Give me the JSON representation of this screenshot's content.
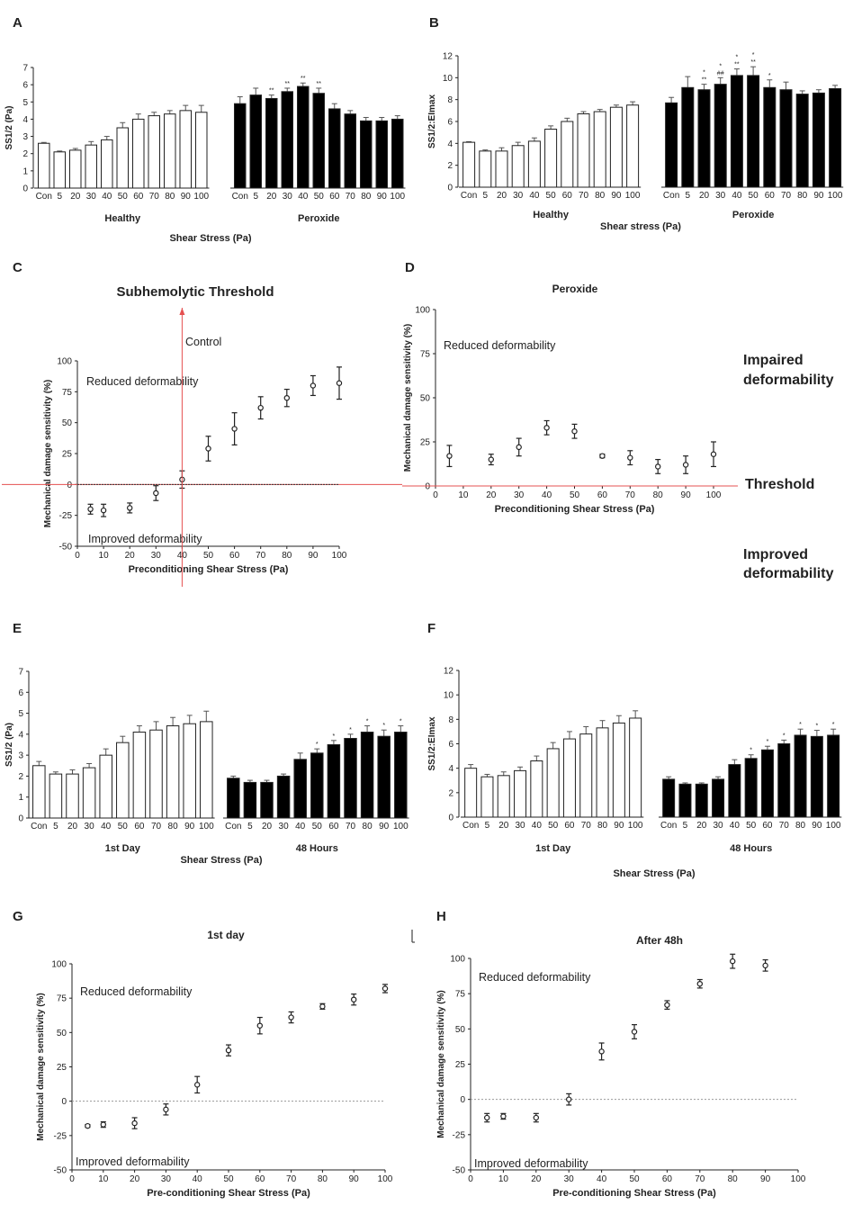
{
  "panel_labels": [
    "A",
    "B",
    "C",
    "D",
    "E",
    "F",
    "G",
    "H"
  ],
  "side_labels": {
    "impaired": [
      "Impaired",
      "deformability"
    ],
    "threshold": "Threshold",
    "improved": [
      "Improved",
      "deformability"
    ]
  },
  "chart_data": [
    {
      "id": "A",
      "type": "bar",
      "title": "",
      "xlabel": "Shear Stress (Pa)",
      "ylabel": "SS1/2 (Pa)",
      "ylim": [
        0,
        7
      ],
      "yticks": [
        0,
        1,
        2,
        3,
        4,
        5,
        6,
        7
      ],
      "groups": [
        {
          "name": "Healthy",
          "fill": "#ffffff",
          "categories": [
            "Con",
            "5",
            "20",
            "30",
            "40",
            "50",
            "60",
            "70",
            "80",
            "90",
            "100"
          ],
          "values": [
            2.6,
            2.1,
            2.2,
            2.5,
            2.8,
            3.5,
            4.0,
            4.2,
            4.3,
            4.5,
            4.4
          ],
          "errors": [
            0.05,
            0.05,
            0.1,
            0.2,
            0.2,
            0.3,
            0.3,
            0.2,
            0.2,
            0.3,
            0.4
          ],
          "annotations": [
            "",
            "",
            "",
            "",
            "",
            "",
            "",
            "",
            "",
            "",
            ""
          ]
        },
        {
          "name": "Peroxide",
          "fill": "#000000",
          "categories": [
            "Con",
            "5",
            "20",
            "30",
            "40",
            "50",
            "60",
            "70",
            "80",
            "90",
            "100"
          ],
          "values": [
            4.9,
            5.4,
            5.2,
            5.6,
            5.9,
            5.5,
            4.6,
            4.3,
            3.9,
            3.9,
            4.0
          ],
          "errors": [
            0.4,
            0.4,
            0.2,
            0.2,
            0.2,
            0.3,
            0.3,
            0.2,
            0.2,
            0.2,
            0.2
          ],
          "annotations": [
            "",
            "",
            "**",
            "**",
            "**",
            "**",
            "",
            "",
            "",
            "",
            ""
          ]
        }
      ]
    },
    {
      "id": "B",
      "type": "bar",
      "title": "",
      "xlabel": "Shear stress (Pa)",
      "ylabel": "SS1/2:EImax",
      "ylim": [
        0,
        12
      ],
      "yticks": [
        0,
        2,
        4,
        6,
        8,
        10,
        12
      ],
      "groups": [
        {
          "name": "Healthy",
          "fill": "#ffffff",
          "categories": [
            "Con",
            "5",
            "20",
            "30",
            "40",
            "50",
            "60",
            "70",
            "80",
            "90",
            "100"
          ],
          "values": [
            4.1,
            3.3,
            3.3,
            3.8,
            4.2,
            5.3,
            6.0,
            6.7,
            6.9,
            7.3,
            7.5
          ],
          "errors": [
            0.05,
            0.1,
            0.3,
            0.3,
            0.3,
            0.3,
            0.3,
            0.2,
            0.2,
            0.2,
            0.3
          ],
          "annotations": [
            "",
            "",
            "",
            "",
            "",
            "",
            "",
            "",
            "",
            "",
            ""
          ]
        },
        {
          "name": "Peroxide",
          "fill": "#000000",
          "categories": [
            "Con",
            "5",
            "20",
            "30",
            "40",
            "50",
            "60",
            "70",
            "80",
            "90",
            "100"
          ],
          "values": [
            7.7,
            9.1,
            8.9,
            9.4,
            10.2,
            10.2,
            9.1,
            8.9,
            8.5,
            8.6,
            9.0
          ],
          "errors": [
            0.5,
            1.0,
            0.5,
            0.6,
            0.6,
            0.8,
            0.7,
            0.7,
            0.3,
            0.3,
            0.3
          ],
          "annotations": [
            "",
            "",
            "*\n**",
            "*\n##",
            "*\n**",
            "*\n**",
            "*",
            "",
            "",
            "",
            ""
          ]
        }
      ]
    },
    {
      "id": "C",
      "type": "scatter",
      "title": "Subhemolytic Threshold",
      "xlabel": "Preconditioning Shear Stress (Pa)",
      "ylabel": "Mechanical damage sensitivity (%)",
      "xlim": [
        0,
        100
      ],
      "ylim": [
        -50,
        100
      ],
      "xticks": [
        0,
        10,
        20,
        30,
        40,
        50,
        60,
        70,
        80,
        90,
        100
      ],
      "yticks": [
        -50,
        -25,
        0,
        25,
        50,
        75,
        100
      ],
      "x": [
        5,
        10,
        20,
        30,
        40,
        50,
        60,
        70,
        80,
        90,
        100
      ],
      "y": [
        -20,
        -21,
        -19,
        -7,
        4,
        29,
        45,
        62,
        70,
        80,
        82
      ],
      "errors": [
        4,
        5,
        4,
        6,
        7,
        10,
        13,
        9,
        7,
        8,
        13
      ],
      "annotations": {
        "control": "Control",
        "reduced": "Reduced deformability",
        "improved": "Improved deformability"
      }
    },
    {
      "id": "D",
      "type": "scatter",
      "title": "Peroxide",
      "xlabel": "Preconditioning Shear Stress (Pa)",
      "ylabel": "Mechanical damage sensitivity (%)",
      "xlim": [
        0,
        100
      ],
      "ylim": [
        0,
        100
      ],
      "xticks": [
        0,
        10,
        20,
        30,
        40,
        50,
        60,
        70,
        80,
        90,
        100
      ],
      "yticks": [
        0,
        25,
        50,
        75,
        100
      ],
      "x": [
        5,
        20,
        30,
        40,
        50,
        60,
        70,
        80,
        90,
        100
      ],
      "y": [
        17,
        15,
        22,
        33,
        31,
        17,
        16,
        11,
        12,
        18
      ],
      "errors": [
        6,
        3,
        5,
        4,
        4,
        1,
        4,
        4,
        5,
        7
      ],
      "annotations": {
        "reduced": "Reduced deformability"
      }
    },
    {
      "id": "E",
      "type": "bar",
      "title": "",
      "xlabel": "Shear Stress (Pa)",
      "ylabel": "SS1/2 (Pa)",
      "ylim": [
        0,
        7
      ],
      "yticks": [
        0,
        1,
        2,
        3,
        4,
        5,
        6,
        7
      ],
      "groups": [
        {
          "name": "1st Day",
          "fill": "#ffffff",
          "categories": [
            "Con",
            "5",
            "20",
            "30",
            "40",
            "50",
            "60",
            "70",
            "80",
            "90",
            "100"
          ],
          "values": [
            2.5,
            2.1,
            2.1,
            2.4,
            3.0,
            3.6,
            4.1,
            4.2,
            4.4,
            4.5,
            4.6
          ],
          "errors": [
            0.2,
            0.1,
            0.2,
            0.2,
            0.3,
            0.3,
            0.3,
            0.4,
            0.4,
            0.4,
            0.5
          ],
          "annotations": [
            "",
            "",
            "",
            "",
            "",
            "",
            "",
            "",
            "",
            "",
            ""
          ]
        },
        {
          "name": "48 Hours",
          "fill": "#000000",
          "categories": [
            "Con",
            "5",
            "20",
            "30",
            "40",
            "50",
            "60",
            "70",
            "80",
            "90",
            "100"
          ],
          "values": [
            1.9,
            1.7,
            1.7,
            2.0,
            2.8,
            3.1,
            3.5,
            3.8,
            4.1,
            3.9,
            4.1
          ],
          "errors": [
            0.1,
            0.1,
            0.1,
            0.1,
            0.3,
            0.2,
            0.2,
            0.2,
            0.3,
            0.3,
            0.3
          ],
          "annotations": [
            "",
            "",
            "",
            "",
            "",
            "*",
            "*",
            "*",
            "*",
            "*",
            "*"
          ]
        }
      ]
    },
    {
      "id": "F",
      "type": "bar",
      "title": "",
      "xlabel": "Shear Stress (Pa)",
      "ylabel": "SS1/2:EImax",
      "ylim": [
        0,
        12
      ],
      "yticks": [
        0,
        2,
        4,
        6,
        8,
        10,
        12
      ],
      "groups": [
        {
          "name": "1st Day",
          "fill": "#ffffff",
          "categories": [
            "Con",
            "5",
            "20",
            "30",
            "40",
            "50",
            "60",
            "70",
            "80",
            "90",
            "100"
          ],
          "values": [
            4.0,
            3.3,
            3.4,
            3.8,
            4.6,
            5.6,
            6.4,
            6.8,
            7.3,
            7.7,
            8.1
          ],
          "errors": [
            0.3,
            0.2,
            0.3,
            0.3,
            0.4,
            0.5,
            0.6,
            0.6,
            0.6,
            0.6,
            0.6
          ],
          "annotations": [
            "",
            "",
            "",
            "",
            "",
            "",
            "",
            "",
            "",
            "",
            ""
          ]
        },
        {
          "name": "48 Hours",
          "fill": "#000000",
          "categories": [
            "Con",
            "5",
            "20",
            "30",
            "40",
            "50",
            "60",
            "70",
            "80",
            "90",
            "100"
          ],
          "values": [
            3.1,
            2.7,
            2.7,
            3.1,
            4.3,
            4.8,
            5.5,
            6.0,
            6.7,
            6.6,
            6.7
          ],
          "errors": [
            0.2,
            0.1,
            0.1,
            0.2,
            0.4,
            0.3,
            0.3,
            0.3,
            0.5,
            0.5,
            0.5
          ],
          "annotations": [
            "",
            "",
            "",
            "",
            "",
            "*",
            "*",
            "*",
            "*",
            "*",
            "*"
          ]
        }
      ]
    },
    {
      "id": "G",
      "type": "scatter",
      "title": "1st day",
      "xlabel": "Pre-conditioning Shear Stress (Pa)",
      "ylabel": "Mechanical damage sensitivity (%)",
      "xlim": [
        0,
        100
      ],
      "ylim": [
        -50,
        100
      ],
      "xticks": [
        0,
        10,
        20,
        30,
        40,
        50,
        60,
        70,
        80,
        90,
        100
      ],
      "yticks": [
        -50,
        -25,
        0,
        25,
        50,
        75,
        100
      ],
      "x": [
        5,
        10,
        20,
        30,
        40,
        50,
        60,
        70,
        80,
        90,
        100
      ],
      "y": [
        -18,
        -17,
        -16,
        -6,
        12,
        37,
        55,
        61,
        69,
        74,
        82
      ],
      "errors": [
        1,
        2,
        4,
        4,
        6,
        4,
        6,
        4,
        2,
        4,
        3
      ],
      "annotations": {
        "reduced": "Reduced deformability",
        "improved": "Improved deformability"
      }
    },
    {
      "id": "H",
      "type": "scatter",
      "title": "After 48h",
      "xlabel": "Pre-conditioning Shear Stress (Pa)",
      "ylabel": "Mechanical damage sensitivity (%)",
      "xlim": [
        0,
        100
      ],
      "ylim": [
        -50,
        100
      ],
      "xticks": [
        0,
        10,
        20,
        30,
        40,
        50,
        60,
        70,
        80,
        90,
        100
      ],
      "yticks": [
        -50,
        -25,
        0,
        25,
        50,
        75,
        100
      ],
      "x": [
        5,
        10,
        20,
        30,
        40,
        50,
        60,
        70,
        80,
        90
      ],
      "y": [
        -13,
        -12,
        -13,
        0,
        34,
        48,
        67,
        82,
        98,
        95
      ],
      "errors": [
        3,
        2,
        3,
        4,
        6,
        5,
        3,
        3,
        5,
        4
      ],
      "annotations": {
        "reduced": "Reduced deformability",
        "improved": "Improved deformability"
      }
    }
  ]
}
